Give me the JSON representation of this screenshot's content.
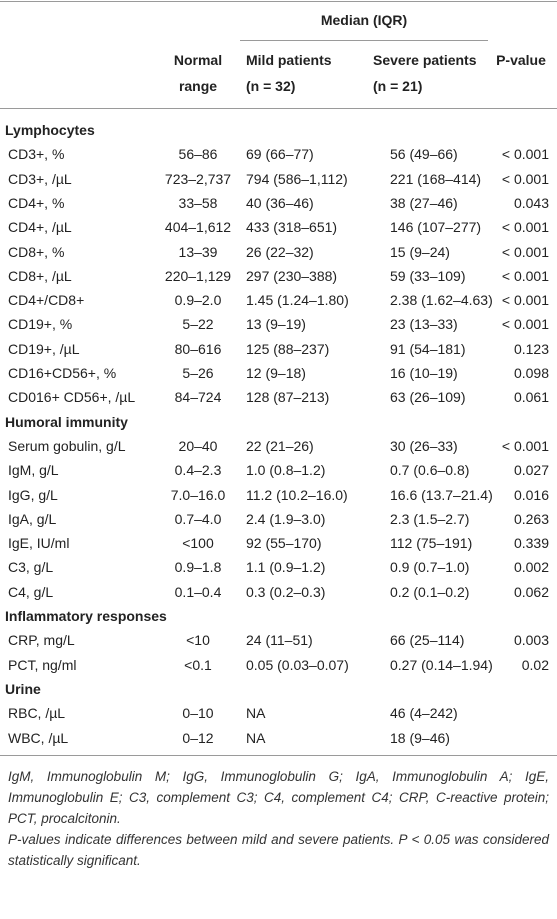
{
  "header": {
    "group": "Median (IQR)",
    "normal": [
      "Normal",
      "range"
    ],
    "mild": [
      "Mild patients",
      "(n = 32)"
    ],
    "severe": [
      "Severe patients",
      "(n = 21)"
    ],
    "p": "P-value"
  },
  "sections": [
    {
      "title": "Lymphocytes",
      "rows": [
        [
          "CD3+, %",
          "56–86",
          "69 (66–77)",
          "56 (49–66)",
          "< 0.001"
        ],
        [
          "CD3+, /µL",
          "723–2,737",
          "794 (586–1,112)",
          "221 (168–414)",
          "< 0.001"
        ],
        [
          "CD4+, %",
          "33–58",
          "40 (36–46)",
          "38 (27–46)",
          "0.043"
        ],
        [
          "CD4+, /µL",
          "404–1,612",
          "433 (318–651)",
          "146 (107–277)",
          "< 0.001"
        ],
        [
          "CD8+, %",
          "13–39",
          "26 (22–32)",
          "15 (9–24)",
          "< 0.001"
        ],
        [
          "CD8+, /µL",
          "220–1,129",
          "297 (230–388)",
          "59 (33–109)",
          "< 0.001"
        ],
        [
          "CD4+/CD8+",
          "0.9–2.0",
          "1.45 (1.24–1.80)",
          "2.38 (1.62–4.63)",
          "< 0.001"
        ],
        [
          "CD19+, %",
          "5–22",
          "13 (9–19)",
          "23 (13–33)",
          "< 0.001"
        ],
        [
          "CD19+, /µL",
          "80–616",
          "125 (88–237)",
          "91 (54–181)",
          "0.123"
        ],
        [
          "CD16+CD56+, %",
          "5–26",
          "12 (9–18)",
          "16 (10–19)",
          "0.098"
        ],
        [
          "CD016+ CD56+, /µL",
          "84–724",
          "128 (87–213)",
          "63 (26–109)",
          "0.061"
        ]
      ]
    },
    {
      "title": "Humoral immunity",
      "rows": [
        [
          "Serum gobulin, g/L",
          "20–40",
          "22 (21–26)",
          "30 (26–33)",
          "< 0.001"
        ],
        [
          "IgM, g/L",
          "0.4–2.3",
          "1.0 (0.8–1.2)",
          "0.7 (0.6–0.8)",
          "0.027"
        ],
        [
          "IgG, g/L",
          "7.0–16.0",
          "11.2 (10.2–16.0)",
          "16.6 (13.7–21.4)",
          "0.016"
        ],
        [
          "IgA, g/L",
          "0.7–4.0",
          "2.4 (1.9–3.0)",
          "2.3 (1.5–2.7)",
          "0.263"
        ],
        [
          "IgE, IU/ml",
          "<100",
          "92 (55–170)",
          "112 (75–191)",
          "0.339"
        ],
        [
          "C3, g/L",
          "0.9–1.8",
          "1.1 (0.9–1.2)",
          "0.9 (0.7–1.0)",
          "0.002"
        ],
        [
          "C4, g/L",
          "0.1–0.4",
          "0.3 (0.2–0.3)",
          "0.2 (0.1–0.2)",
          "0.062"
        ]
      ]
    },
    {
      "title": "Inflammatory responses",
      "rows": [
        [
          "CRP, mg/L",
          "<10",
          "24 (11–51)",
          "66 (25–114)",
          "0.003"
        ],
        [
          "PCT, ng/ml",
          "<0.1",
          "0.05 (0.03–0.07)",
          "0.27 (0.14–1.94)",
          "0.02"
        ]
      ]
    },
    {
      "title": "Urine",
      "rows": [
        [
          "RBC, /µL",
          "0–10",
          "NA",
          "46 (4–242)",
          ""
        ],
        [
          "WBC, /µL",
          "0–12",
          "NA",
          "18 (9–46)",
          ""
        ]
      ]
    }
  ],
  "footnotes": [
    "IgM, Immunoglobulin M; IgG, Immunoglobulin G; IgA, Immunoglobulin A; IgE, Immunoglobulin E; C3, complement C3; C4, complement C4; CRP, C-reactive protein; PCT, procalcitonin.",
    "P-values indicate differences between mild and severe patients. P < 0.05 was considered statistically significant."
  ]
}
